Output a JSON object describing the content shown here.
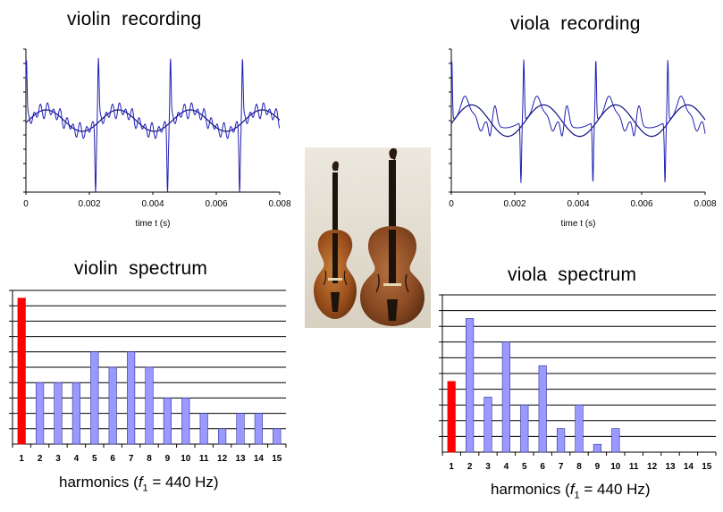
{
  "panels": {
    "violin_recording_title": "violin  recording",
    "viola_recording_title": "viola  recording",
    "violin_spectrum_title": "violin  spectrum",
    "viola_spectrum_title": "viola  spectrum",
    "spectrum_xlabel_prefix": "harmonics (",
    "spectrum_xlabel_f": "f",
    "spectrum_xlabel_sub": "1",
    "spectrum_xlabel_suffix": " = 440 Hz)"
  },
  "photo": {
    "subject": "violin and viola side by side"
  },
  "colors": {
    "waveform": "#1f1fb4",
    "bar": "#9999ff",
    "bar_fundamental": "#ff0000",
    "bar_edge": "#333399",
    "grid": "#000000"
  },
  "chart_data": [
    {
      "id": "violin_recording",
      "type": "line",
      "title": "violin  recording",
      "xlabel": "time t (s)",
      "xlim": [
        0,
        0.008
      ],
      "ylim": [
        -1,
        1
      ],
      "xticks": [
        0,
        0.002,
        0.004,
        0.006,
        0.008
      ],
      "xtick_labels": [
        "0",
        "0.002",
        "0.004",
        "0.006",
        "0.008"
      ],
      "period_s": 0.00227,
      "series": [
        {
          "kind": "recorded",
          "spike_amplitude": 0.85,
          "ripple_amplitude": 0.08
        },
        {
          "kind": "fundamental",
          "amplitude": 0.15
        }
      ]
    },
    {
      "id": "viola_recording",
      "type": "line",
      "title": "viola  recording",
      "xlabel": "time t (s)",
      "xlim": [
        0,
        0.008
      ],
      "ylim": [
        -1,
        1
      ],
      "xticks": [
        0,
        0.002,
        0.004,
        0.006,
        0.008
      ],
      "xtick_labels": [
        "0",
        "0.002",
        "0.004",
        "0.006",
        "0.008"
      ],
      "period_s": 0.00227,
      "series": [
        {
          "kind": "recorded",
          "spike_amplitude": 0.85
        },
        {
          "kind": "fundamental",
          "amplitude": 0.22
        }
      ]
    },
    {
      "id": "violin_spectrum",
      "type": "bar",
      "title": "violin  spectrum",
      "categories": [
        "1",
        "2",
        "3",
        "4",
        "5",
        "6",
        "7",
        "8",
        "9",
        "10",
        "11",
        "12",
        "13",
        "14",
        "15"
      ],
      "values": [
        9.5,
        4,
        4,
        4,
        6,
        5,
        6,
        5,
        3,
        3,
        2,
        1,
        2,
        2,
        1
      ],
      "ylim": [
        0,
        10
      ],
      "highlight_index": 0
    },
    {
      "id": "viola_spectrum",
      "type": "bar",
      "title": "viola  spectrum",
      "categories": [
        "1",
        "2",
        "3",
        "4",
        "5",
        "6",
        "7",
        "8",
        "9",
        "10",
        "11",
        "12",
        "13",
        "14",
        "15"
      ],
      "values": [
        4.5,
        8.5,
        3.5,
        7,
        3,
        5.5,
        1.5,
        3,
        0.5,
        1.5,
        0,
        0,
        0,
        0,
        0
      ],
      "ylim": [
        0,
        10
      ],
      "highlight_index": 0
    }
  ]
}
